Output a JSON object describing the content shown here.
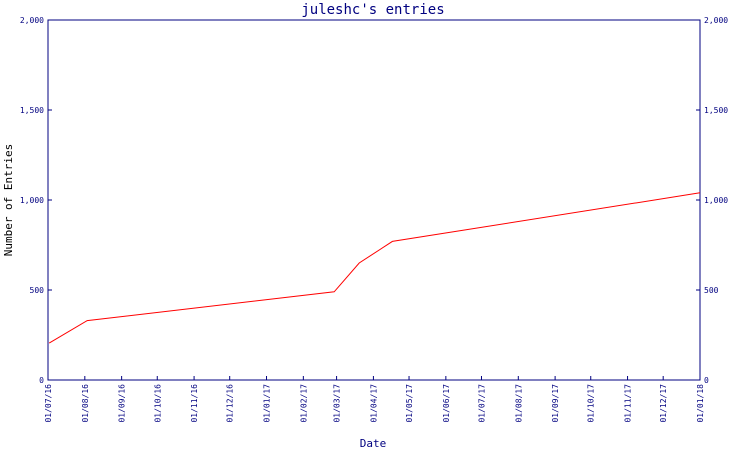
{
  "chart_data": {
    "type": "line",
    "title": "juleshc's entries",
    "xlabel": "Date",
    "ylabel": "Number of Entries",
    "x_ticks": [
      "01/07/16",
      "01/08/16",
      "01/09/16",
      "01/10/16",
      "01/11/16",
      "01/12/16",
      "01/01/17",
      "01/02/17",
      "01/03/17",
      "01/04/17",
      "01/05/17",
      "01/06/17",
      "01/07/17",
      "01/08/17",
      "01/09/17",
      "01/10/17",
      "01/11/17",
      "01/12/17",
      "01/01/18"
    ],
    "y_ticks": [
      0,
      500,
      1000,
      1500,
      2000
    ],
    "y_tick_labels": [
      "0",
      "500",
      "1,000",
      "1,500",
      "2,000"
    ],
    "xlim": [
      "2016-07-01",
      "2018-01-01"
    ],
    "ylim": [
      0,
      2000
    ],
    "grid": false,
    "legend": "none",
    "line_color": "#ff0000",
    "axis_color": "#000080",
    "series": [
      {
        "x": [
          "2016-07-02",
          "2016-08-03",
          "2017-02-27",
          "2017-03-20",
          "2017-04-17",
          "2018-01-01"
        ],
        "values": [
          205,
          330,
          490,
          650,
          770,
          1040
        ]
      }
    ]
  }
}
